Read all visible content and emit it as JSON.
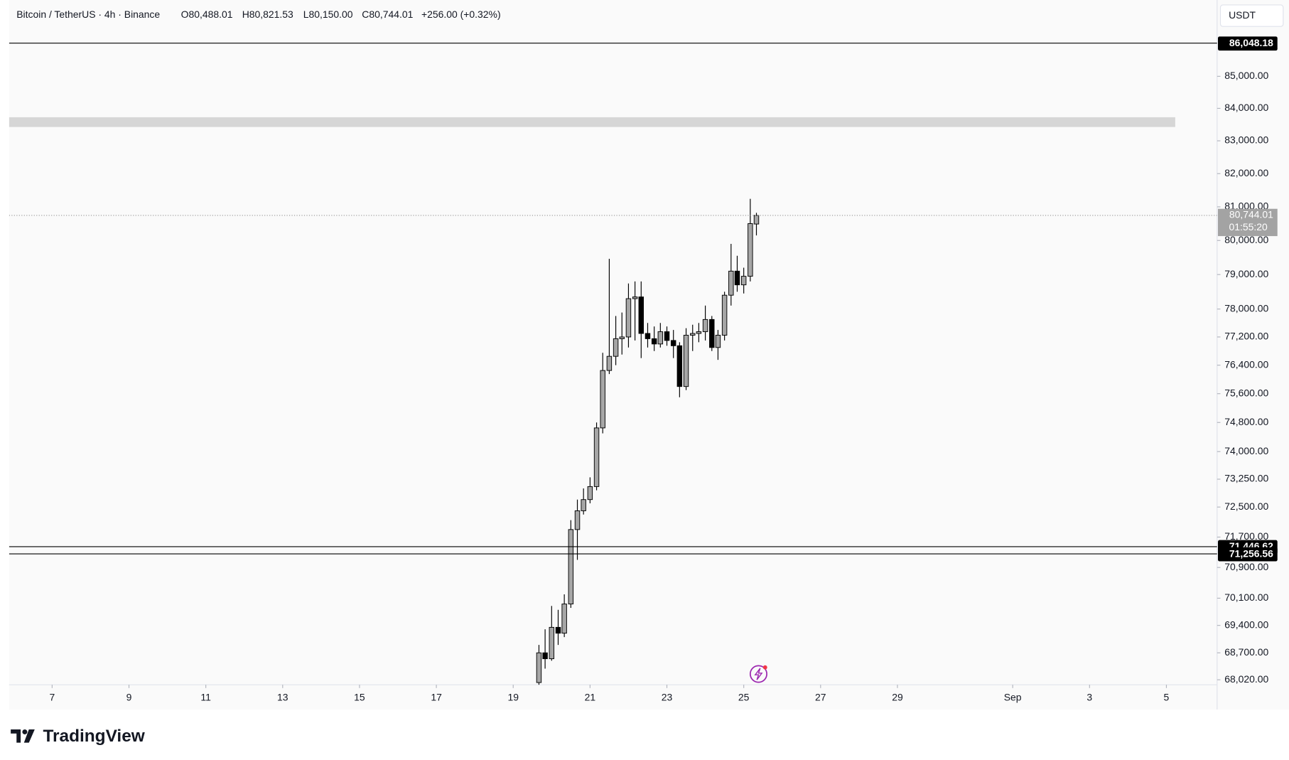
{
  "chart_data": {
    "type": "candlestick",
    "header": {
      "title": "Bitcoin / TetherUS · 4h · Binance",
      "ohlc": [
        "O80,488.01",
        "H80,821.53",
        "L80,150.00",
        "C80,744.01"
      ],
      "change": "+256.00 (+0.32%)"
    },
    "currency": "USDT",
    "log": true,
    "grid": false,
    "up_color": "#a6a6a6",
    "down_color": "#000000",
    "x": [
      19.67,
      19.83,
      20,
      20.17,
      20.33,
      20.5,
      20.67,
      20.83,
      21,
      21.17,
      21.33,
      21.5,
      21.67,
      21.83,
      22,
      22.17,
      22.33,
      22.5,
      22.67,
      22.83,
      23,
      23.17,
      23.33,
      23.5,
      23.67,
      23.83,
      24,
      24.17,
      24.33,
      24.5,
      24.67,
      24.83,
      25,
      25.17,
      25.33
    ],
    "open": [
      67950,
      68700,
      68550,
      69350,
      69200,
      69950,
      71900,
      72400,
      72700,
      73050,
      74650,
      76250,
      76650,
      77150,
      77200,
      78300,
      78350,
      77300,
      77150,
      77000,
      77350,
      77100,
      76950,
      75800,
      77250,
      77300,
      77350,
      77700,
      76900,
      77250,
      78400,
      79100,
      78700,
      78950,
      80488.01
    ],
    "high": [
      68900,
      69300,
      69900,
      69800,
      70200,
      72150,
      72700,
      73000,
      73300,
      74800,
      76750,
      79460,
      77800,
      77900,
      78740,
      78800,
      78800,
      77600,
      77500,
      77600,
      77500,
      77400,
      77050,
      77450,
      77550,
      77600,
      78100,
      77800,
      77400,
      78500,
      79900,
      79550,
      79200,
      81240,
      80821.53
    ],
    "low": [
      67800,
      68300,
      68500,
      68900,
      69100,
      69850,
      71100,
      72300,
      72600,
      72950,
      74500,
      76150,
      76400,
      76700,
      76900,
      77100,
      76600,
      76900,
      76800,
      76900,
      76950,
      76600,
      75500,
      75700,
      76800,
      77050,
      77100,
      76800,
      76550,
      77100,
      78100,
      78500,
      78450,
      78800,
      80150
    ],
    "close": [
      68700,
      68550,
      69350,
      69200,
      69950,
      71900,
      72400,
      72700,
      73050,
      74650,
      76250,
      76650,
      77150,
      77200,
      78300,
      78350,
      77300,
      77150,
      77000,
      77350,
      77100,
      76950,
      75800,
      77250,
      77300,
      77350,
      77700,
      76900,
      77250,
      78400,
      79100,
      78700,
      78950,
      80500,
      80744.01
    ],
    "xlim": [
      5.88,
      37.32
    ],
    "ylim": [
      67895,
      87430
    ],
    "xticks": [
      7,
      9,
      11,
      13,
      15,
      17,
      19,
      21,
      23,
      25,
      27,
      29,
      {
        "value": 32,
        "label": "Sep"
      },
      {
        "value": 34,
        "label": "3"
      },
      {
        "value": 36,
        "label": "5"
      }
    ],
    "yticks": [
      {
        "value": 68020,
        "label": "68,020.00"
      },
      {
        "value": 68700,
        "label": "68,700.00"
      },
      {
        "value": 69400,
        "label": "69,400.00"
      },
      {
        "value": 70100,
        "label": "70,100.00"
      },
      {
        "value": 70900,
        "label": "70,900.00"
      },
      {
        "value": 71700,
        "label": "71,700.00"
      },
      {
        "value": 72500,
        "label": "72,500.00"
      },
      {
        "value": 73250,
        "label": "73,250.00"
      },
      {
        "value": 74000,
        "label": "74,000.00"
      },
      {
        "value": 74800,
        "label": "74,800.00"
      },
      {
        "value": 75600,
        "label": "75,600.00"
      },
      {
        "value": 76400,
        "label": "76,400.00"
      },
      {
        "value": 77200,
        "label": "77,200.00"
      },
      {
        "value": 78000,
        "label": "78,000.00"
      },
      {
        "value": 79000,
        "label": "79,000.00"
      },
      {
        "value": 80000,
        "label": "80,000.00"
      },
      {
        "value": 81000,
        "label": "81,000.00"
      },
      {
        "value": 82000,
        "label": "82,000.00"
      },
      {
        "value": 83000,
        "label": "83,000.00"
      },
      {
        "value": 84000,
        "label": "84,000.00"
      },
      {
        "value": 85000,
        "label": "85,000.00"
      }
    ],
    "zone": {
      "from": 83425,
      "to": 83725,
      "x_end": 36.23,
      "color": "#d6d6d6"
    },
    "price_lines": [
      {
        "value": 86048.18,
        "label": "86,048.18"
      },
      {
        "value": 71446.62,
        "label": "71,446.62"
      },
      {
        "value": 71256.56,
        "label": "71,256.56"
      }
    ],
    "last_price": {
      "value": 80744.01,
      "label": "80,744.01",
      "countdown": "01:55:20"
    }
  },
  "brand": "TradingView"
}
